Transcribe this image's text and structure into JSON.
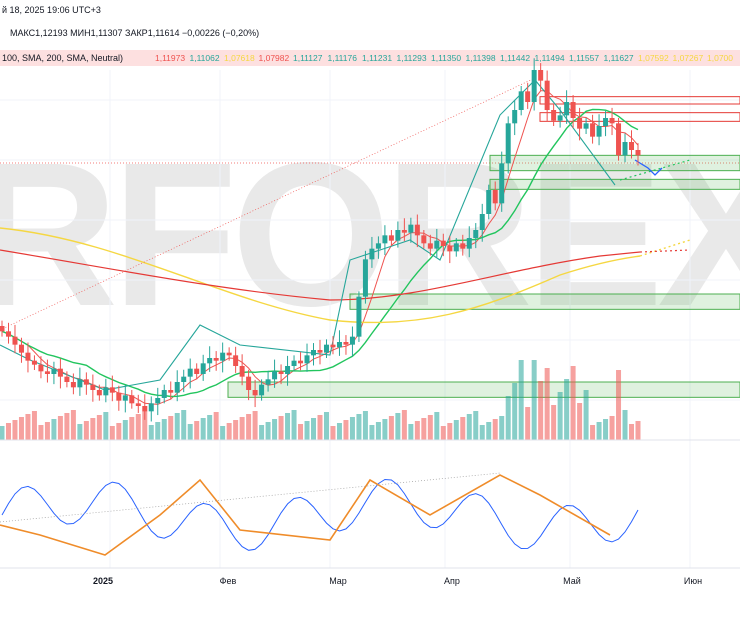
{
  "header": {
    "line1": "й 18, 2025 19:06 UTC+3",
    "ohlc": "МАКС1,12193  МИН1,11307  ЗАКР1,11614  −0,00226 (−0,20%)",
    "ma_label": "100, SMA, 200, SMA, Neutral)",
    "ma_values": [
      "1,11973",
      "1,11062",
      "1,07618",
      "1,07982",
      "1,11127",
      "1,11176",
      "1,11231",
      "1,11293",
      "1,11350",
      "1,11398",
      "1,11442",
      "1,11494",
      "1,11557",
      "1,11627",
      "1,07592",
      "1,07267",
      "1,0700"
    ]
  },
  "watermark": "RFOREX.c",
  "colors": {
    "up": "#26a69a",
    "down": "#ef5350",
    "ma_fast": "#ef5350",
    "ma_mid": "#22c55e",
    "ma_slow_red": "#e53935",
    "ma_slow_yellow": "#f5d742",
    "zone_green": "#4caf50",
    "zone_red": "#e53935",
    "osc_blue": "#2962ff",
    "osc_orange": "#ef8c2a"
  },
  "chart_data": {
    "type": "candlestick",
    "x_tick_labels": [
      "2025",
      "Фев",
      "Мар",
      "Апр",
      "Май",
      "Июн"
    ],
    "closes": [
      1.052,
      1.05,
      1.047,
      1.044,
      1.041,
      1.0395,
      1.037,
      1.036,
      1.038,
      1.035,
      1.033,
      1.031,
      1.034,
      1.032,
      1.03,
      1.028,
      1.031,
      1.029,
      1.026,
      1.028,
      1.025,
      1.024,
      1.022,
      1.025,
      1.027,
      1.03,
      1.029,
      1.033,
      1.035,
      1.038,
      1.036,
      1.04,
      1.042,
      1.041,
      1.044,
      1.043,
      1.039,
      1.035,
      1.03,
      1.028,
      1.032,
      1.034,
      1.037,
      1.036,
      1.039,
      1.041,
      1.04,
      1.043,
      1.045,
      1.044,
      1.047,
      1.046,
      1.048,
      1.047,
      1.05,
      1.065,
      1.079,
      1.083,
      1.085,
      1.088,
      1.086,
      1.09,
      1.089,
      1.092,
      1.088,
      1.085,
      1.083,
      1.086,
      1.084,
      1.082,
      1.085,
      1.083,
      1.087,
      1.09,
      1.096,
      1.105,
      1.1,
      1.115,
      1.13,
      1.135,
      1.142,
      1.138,
      1.15,
      1.146,
      1.135,
      1.131,
      1.133,
      1.138,
      1.132,
      1.128,
      1.13,
      1.125,
      1.129,
      1.132,
      1.13,
      1.118,
      1.123,
      1.12,
      1.118
    ],
    "volume_shape": "bars below price, teal/red colored by candle direction",
    "horizontal_zones": [
      {
        "type": "resistance",
        "top": 1.14,
        "bottom": 1.138
      },
      {
        "type": "resistance",
        "top": 1.134,
        "bottom": 1.1315
      },
      {
        "type": "support",
        "top": 1.118,
        "bottom": 1.113
      },
      {
        "type": "support",
        "top": 1.109,
        "bottom": 1.106
      },
      {
        "type": "support",
        "top": 1.066,
        "bottom": 1.061
      },
      {
        "type": "support",
        "top": 1.033,
        "bottom": 1.028
      }
    ]
  }
}
